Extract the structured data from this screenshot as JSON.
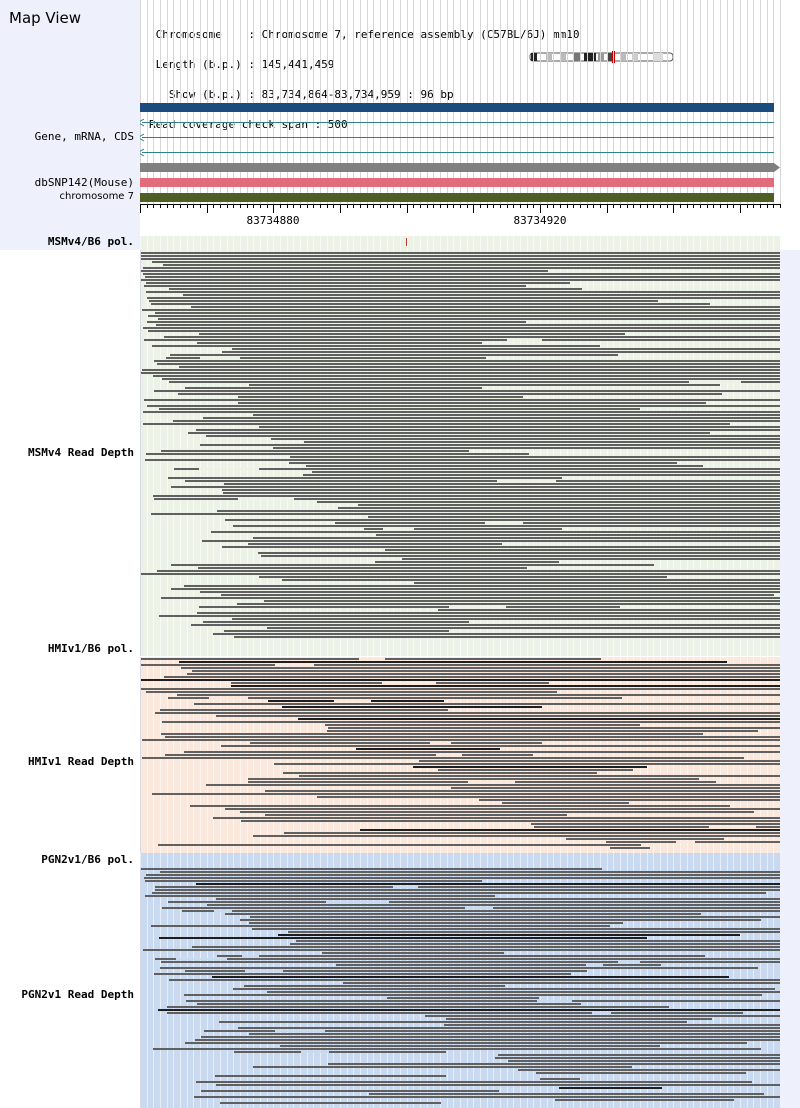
{
  "app": {
    "title": "Map View"
  },
  "info": {
    "lines": [
      " Chromosome    : Chromosome 7, reference assembly (C57BL/6J) mm10",
      " Length (b.p.) : 145,441,459",
      "   Show (b.p.) : 83,734,864-83,734,959 : 96 bp",
      "Read coverage check span : 500"
    ]
  },
  "tracks": {
    "gene_label": "Gene, mRNA, CDS",
    "snp_label": "dbSNP142(Mouse)",
    "chrom_label": "chromosome 7"
  },
  "ruler": {
    "ticks": [
      "83734880",
      "83734920"
    ]
  },
  "strains": [
    {
      "pol_label": "MSMv4/B6 pol.",
      "depth_label": "MSMv4 Read Depth",
      "color": "#edf2e6"
    },
    {
      "pol_label": "HMIv1/B6 pol.",
      "depth_label": "HMIv1 Read Depth",
      "color": "#fbe8dc"
    },
    {
      "pol_label": "PGN2v1/B6 pol.",
      "depth_label": "PGN2v1 Read Depth",
      "color": "#c9d9f0"
    }
  ],
  "colors": {
    "gene_bar": "#1c4b7e",
    "gene_line": "#2e7f87",
    "snp_bar": "#808080",
    "snp_pink": "#e36c7c",
    "chrom_bar": "#4d5d24",
    "read": "#606060",
    "read_dark": "#1e1e1e",
    "grid": "#d6d6d6",
    "left_bg": "#eef0fb",
    "variant_mark": "#c0392b"
  },
  "icons": {
    "ideogram": "chromosome-ideogram-icon"
  }
}
